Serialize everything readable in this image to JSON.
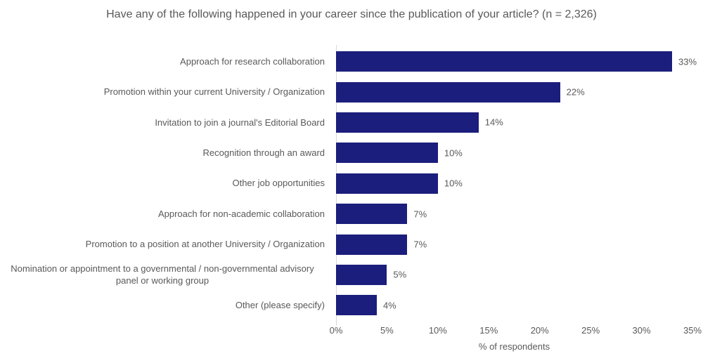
{
  "colors": {
    "bar": "#1B1E7C",
    "text": "#595959",
    "axis_line": "#D9D9D9",
    "background": "#FFFFFF"
  },
  "chart_data": {
    "type": "bar",
    "orientation": "horizontal",
    "title": "Have any of the following happened in your career since the publication of your article? (n = 2,326)",
    "categories": [
      "Approach for research collaboration",
      "Promotion within your current University / Organization",
      "Invitation to join a journal's Editorial Board",
      "Recognition through an award",
      "Other job opportunities",
      "Approach for non-academic collaboration",
      "Promotion to a position at another University / Organization",
      "Nomination or appointment to a governmental / non-governmental advisory panel or working group",
      "Other (please specify)"
    ],
    "values": [
      33,
      22,
      14,
      10,
      10,
      7,
      7,
      5,
      4
    ],
    "value_labels": [
      "33%",
      "22%",
      "14%",
      "10%",
      "10%",
      "7%",
      "7%",
      "5%",
      "4%"
    ],
    "xlabel": "% of respondents",
    "ylabel": "",
    "xlim": [
      0,
      35
    ],
    "xticks": [
      "0%",
      "5%",
      "10%",
      "15%",
      "20%",
      "25%",
      "30%",
      "35%"
    ],
    "grid": false,
    "legend": false,
    "bar_color": "#1B1E7C"
  }
}
